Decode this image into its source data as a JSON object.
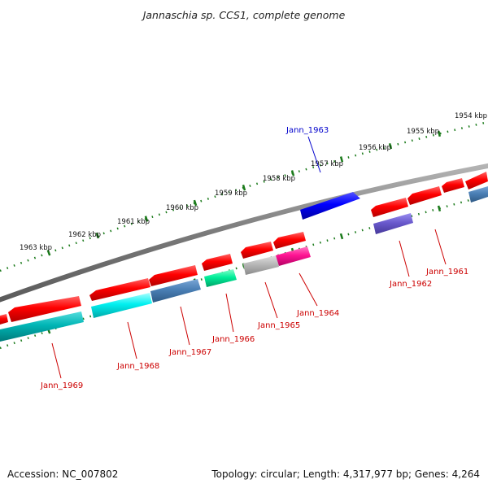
{
  "title": "Jannaschia sp. CCS1, complete genome",
  "footer": {
    "accession": "Accession: NC_007802",
    "summary": "Topology: circular; Length: 4,317,977 bp; Genes: 4,264"
  },
  "scale_labels": [
    "1954 kbp",
    "1955 kbp",
    "1956 kbp",
    "1957 kbp",
    "1958 kbp",
    "1959 kbp",
    "1960 kbp",
    "1961 kbp",
    "1962 kbp",
    "1963 kbp"
  ],
  "gene_labels": [
    {
      "name": "Jann_1963",
      "color": "#0000cc"
    },
    {
      "name": "Jann_1961",
      "color": "#cc0000"
    },
    {
      "name": "Jann_1962",
      "color": "#cc0000"
    },
    {
      "name": "Jann_1964",
      "color": "#cc0000"
    },
    {
      "name": "Jann_1965",
      "color": "#cc0000"
    },
    {
      "name": "Jann_1966",
      "color": "#cc0000"
    },
    {
      "name": "Jann_1967",
      "color": "#cc0000"
    },
    {
      "name": "Jann_1968",
      "color": "#cc0000"
    },
    {
      "name": "Jann_1969",
      "color": "#cc0000"
    }
  ],
  "colors": {
    "backbone": "#808080",
    "ticks": "#1a7a1a",
    "gene_default": "#ff0000",
    "gene_blue": "#0000ff",
    "gene_cyan": "#00ffff",
    "gene_teal": "#00bfbf",
    "gene_steel": "#4a7fb5",
    "gene_green": "#00ff99",
    "gene_gray": "#b0b0b0",
    "gene_pink": "#ff1493",
    "gene_purple": "#6a5acd"
  }
}
